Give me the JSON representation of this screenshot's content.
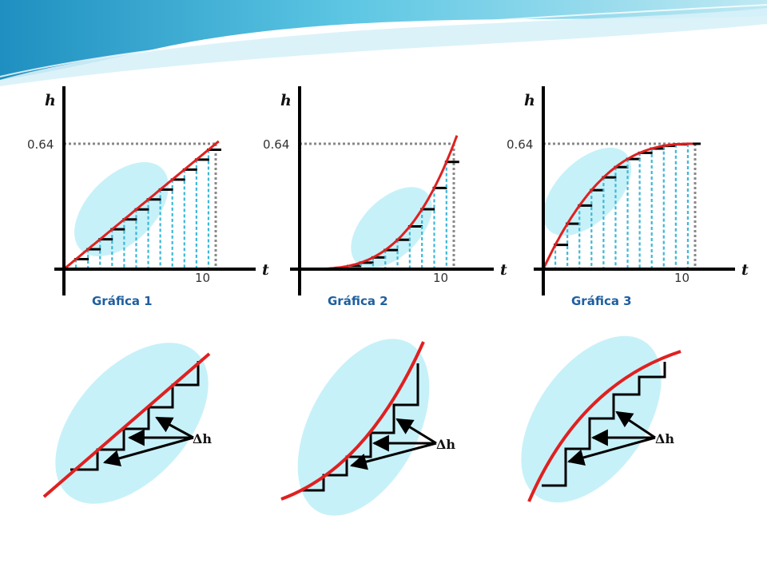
{
  "graphs": [
    {
      "axis_y": "h",
      "axis_x": "t",
      "y_tick": "0.64",
      "x_tick": "10",
      "caption": "Gráfica 1"
    },
    {
      "axis_y": "h",
      "axis_x": "t",
      "y_tick": "0.64",
      "x_tick": "10",
      "caption": "Gráfica 2"
    },
    {
      "axis_y": "h",
      "axis_x": "t",
      "y_tick": "0.64",
      "x_tick": "10",
      "caption": "Gráfica 3"
    }
  ],
  "zooms": [
    {
      "delta_label": "Δh"
    },
    {
      "delta_label": "Δh"
    },
    {
      "delta_label": "Δh"
    }
  ],
  "colors": {
    "curve": "#e02020",
    "ellipse": "#c7f1f8",
    "dashed_vertical": "#3bb8d8",
    "dotted_reference": "#888888",
    "caption": "#1f5fa0",
    "banner_top": "#2aa9cf",
    "banner_light": "#bfe9f3"
  }
}
